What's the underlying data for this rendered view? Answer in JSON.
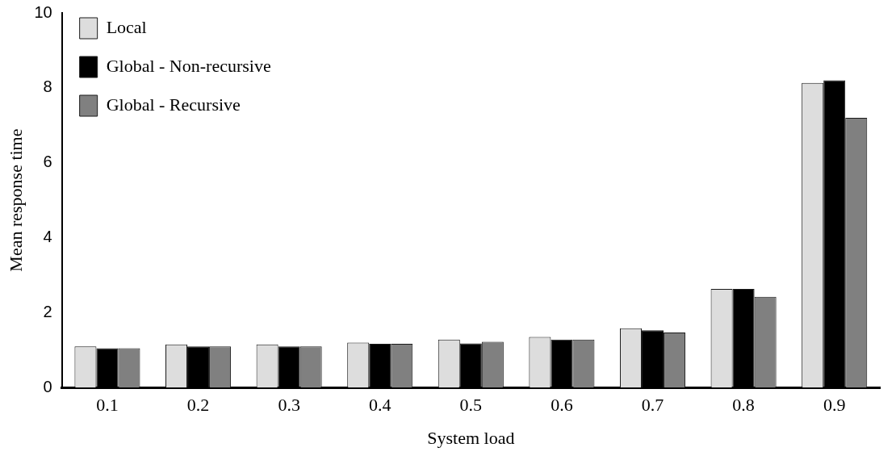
{
  "chart_data": {
    "type": "bar",
    "xlabel": "System load",
    "ylabel": "Mean response time",
    "categories": [
      "0.1",
      "0.2",
      "0.3",
      "0.4",
      "0.5",
      "0.6",
      "0.7",
      "0.8",
      "0.9"
    ],
    "series": [
      {
        "name": "Local",
        "color": "#dddddd",
        "values": [
          1.1,
          1.15,
          1.15,
          1.2,
          1.28,
          1.35,
          1.58,
          2.63,
          8.13
        ]
      },
      {
        "name": "Global - Non-recursive",
        "color": "#000000",
        "values": [
          1.05,
          1.1,
          1.1,
          1.17,
          1.18,
          1.28,
          1.53,
          2.63,
          8.2
        ]
      },
      {
        "name": "Global - Recursive",
        "color": "#808080",
        "values": [
          1.05,
          1.1,
          1.1,
          1.17,
          1.22,
          1.28,
          1.47,
          2.42,
          7.2
        ]
      }
    ],
    "ylim": [
      0,
      10
    ],
    "yticks": [
      0,
      2,
      4,
      6,
      8,
      10
    ],
    "grid": false,
    "legend": "top left"
  }
}
